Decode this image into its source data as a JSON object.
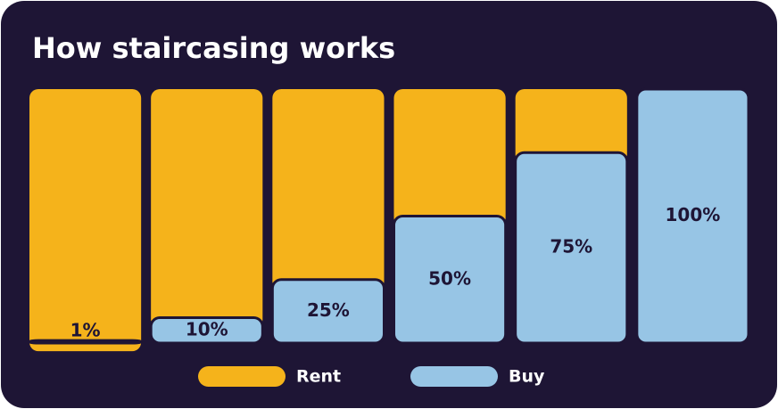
{
  "chart_data": {
    "type": "stacked-bar",
    "title": "How staircasing works",
    "series": [
      {
        "name": "Rent",
        "color": "#f5b31b",
        "values": [
          99,
          90,
          75,
          50,
          25,
          0
        ]
      },
      {
        "name": "Buy",
        "color": "#97c5e5",
        "values": [
          1,
          10,
          25,
          50,
          75,
          100
        ],
        "value_labels": [
          "1%",
          "10%",
          "25%",
          "50%",
          "75%",
          "100%"
        ]
      }
    ],
    "background": "#1e1535"
  }
}
